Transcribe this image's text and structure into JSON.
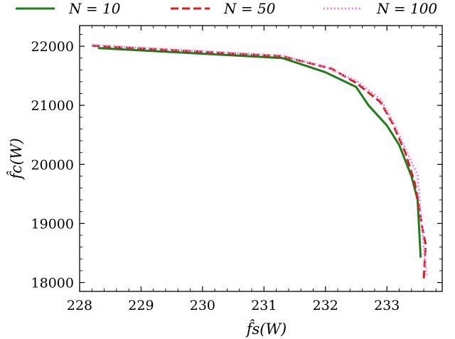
{
  "chart_data": {
    "type": "line",
    "xlabel": "f̂s(W)",
    "ylabel": "f̂c(W)",
    "xlim": [
      228,
      233.9
    ],
    "ylim": [
      17850,
      22350
    ],
    "xticks": [
      228,
      229,
      230,
      231,
      232,
      233
    ],
    "yticks": [
      18000,
      19000,
      20000,
      21000,
      22000
    ],
    "legend_position": "top",
    "grid": false,
    "series": [
      {
        "name": "N = 10",
        "color": "#1a7f1a",
        "style": "solid",
        "points": [
          [
            228.3,
            21970
          ],
          [
            231.3,
            21800
          ],
          [
            232.0,
            21560
          ],
          [
            232.5,
            21310
          ],
          [
            232.7,
            21000
          ],
          [
            233.0,
            20660
          ],
          [
            233.2,
            20330
          ],
          [
            233.4,
            19800
          ],
          [
            233.5,
            19400
          ],
          [
            233.55,
            18420
          ]
        ]
      },
      {
        "name": "N = 50",
        "color": "#e31a1c",
        "style": "dashed",
        "points": [
          [
            228.2,
            22010
          ],
          [
            231.3,
            21830
          ],
          [
            232.1,
            21620
          ],
          [
            232.5,
            21380
          ],
          [
            232.9,
            21050
          ],
          [
            233.1,
            20680
          ],
          [
            233.3,
            20200
          ],
          [
            233.45,
            19700
          ],
          [
            233.52,
            19300
          ],
          [
            233.58,
            18900
          ],
          [
            233.63,
            18650
          ],
          [
            233.6,
            18060
          ]
        ]
      },
      {
        "name": "N = 100",
        "color": "#ee82ee",
        "style": "dotted",
        "points": [
          [
            228.2,
            22020
          ],
          [
            231.3,
            21840
          ],
          [
            232.0,
            21650
          ],
          [
            232.5,
            21420
          ],
          [
            232.9,
            21100
          ],
          [
            233.1,
            20720
          ],
          [
            233.3,
            20270
          ],
          [
            233.5,
            19820
          ],
          [
            233.55,
            19150
          ],
          [
            233.6,
            18600
          ],
          [
            233.65,
            18100
          ]
        ]
      }
    ]
  }
}
